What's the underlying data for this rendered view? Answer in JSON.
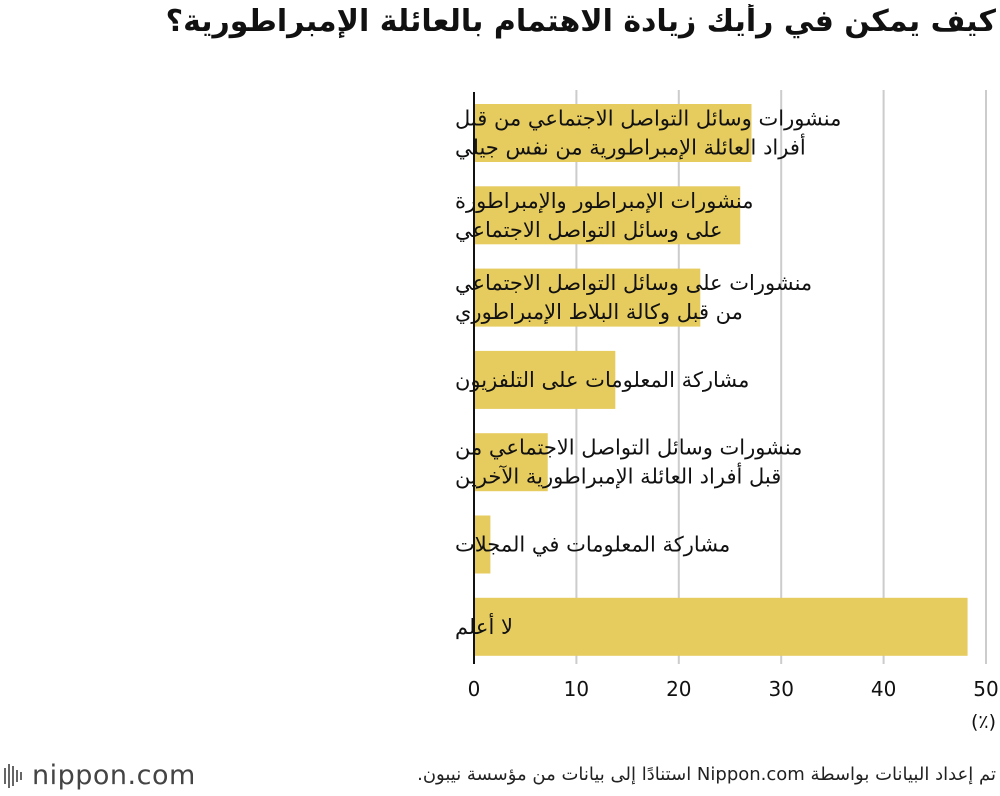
{
  "title": "كيف يمكن في رأيك زيادة الاهتمام بالعائلة الإمبراطورية؟",
  "colors": {
    "bar": "#e6cb5e",
    "grid": "#cccccc",
    "axis": "#111111"
  },
  "chart_data": {
    "type": "bar",
    "orientation": "horizontal",
    "title": "كيف يمكن في رأيك زيادة الاهتمام بالعائلة الإمبراطورية؟",
    "categories": [
      [
        "منشورات وسائل التواصل الاجتماعي من قبل",
        "أفراد العائلة الإمبراطورية من نفس جيلي"
      ],
      [
        "منشورات الإمبراطور والإمبراطورة",
        "على وسائل التواصل الاجتماعي"
      ],
      [
        "منشورات على وسائل التواصل الاجتماعي",
        "من قبل وكالة البلاط الإمبراطوري"
      ],
      [
        "مشاركة المعلومات على التلفزيون"
      ],
      [
        "منشورات وسائل التواصل الاجتماعي من",
        "قبل أفراد العائلة الإمبراطورية الآخرين"
      ],
      [
        "مشاركة المعلومات في المجلات"
      ],
      [
        "لا أعلم"
      ]
    ],
    "values": [
      27.1,
      26.0,
      22.1,
      13.8,
      7.2,
      1.6,
      48.2
    ],
    "xlim": [
      0,
      50
    ],
    "xticks": [
      0,
      10,
      20,
      30,
      40,
      50
    ],
    "xunit": "(٪)",
    "grid": true
  },
  "footer": {
    "logo_text": "nippon.com",
    "source": "تم إعداد البيانات بواسطة Nippon.com استنادًا إلى بيانات من مؤسسة نيبون."
  }
}
